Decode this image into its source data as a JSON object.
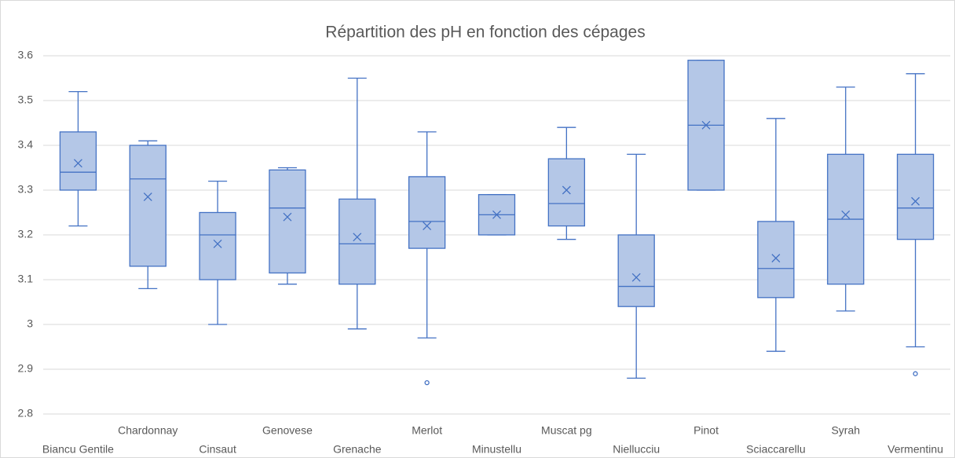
{
  "chart_data": {
    "type": "box",
    "title": "Répartition des pH en fonction des cépages",
    "categories": [
      "Biancu Gentile",
      "Chardonnay",
      "Cinsaut",
      "Genovese",
      "Grenache",
      "Merlot",
      "Minustellu",
      "Muscat pg",
      "Niellucciu",
      "Pinot",
      "Sciaccarellu",
      "Syrah",
      "Vermentinu"
    ],
    "boxes": [
      {
        "min": 3.22,
        "q1": 3.3,
        "median": 3.34,
        "q3": 3.43,
        "max": 3.52,
        "mean": 3.36,
        "outliers": []
      },
      {
        "min": 3.08,
        "q1": 3.13,
        "median": 3.325,
        "q3": 3.4,
        "max": 3.41,
        "mean": 3.285,
        "outliers": []
      },
      {
        "min": 3.0,
        "q1": 3.1,
        "median": 3.2,
        "q3": 3.25,
        "max": 3.32,
        "mean": 3.18,
        "outliers": []
      },
      {
        "min": 3.09,
        "q1": 3.115,
        "median": 3.26,
        "q3": 3.345,
        "max": 3.35,
        "mean": 3.24,
        "outliers": []
      },
      {
        "min": 2.99,
        "q1": 3.09,
        "median": 3.18,
        "q3": 3.28,
        "max": 3.55,
        "mean": 3.195,
        "outliers": []
      },
      {
        "min": 2.97,
        "q1": 3.17,
        "median": 3.23,
        "q3": 3.33,
        "max": 3.43,
        "mean": 3.22,
        "outliers": [
          2.87
        ]
      },
      {
        "min": 3.2,
        "q1": 3.2,
        "median": 3.245,
        "q3": 3.29,
        "max": 3.29,
        "mean": 3.245,
        "outliers": []
      },
      {
        "min": 3.19,
        "q1": 3.22,
        "median": 3.27,
        "q3": 3.37,
        "max": 3.44,
        "mean": 3.3,
        "outliers": []
      },
      {
        "min": 2.88,
        "q1": 3.04,
        "median": 3.085,
        "q3": 3.2,
        "max": 3.38,
        "mean": 3.105,
        "outliers": []
      },
      {
        "min": 3.3,
        "q1": 3.3,
        "median": 3.445,
        "q3": 3.59,
        "max": 3.59,
        "mean": 3.445,
        "outliers": []
      },
      {
        "min": 2.94,
        "q1": 3.06,
        "median": 3.125,
        "q3": 3.23,
        "max": 3.46,
        "mean": 3.148,
        "outliers": []
      },
      {
        "min": 3.03,
        "q1": 3.09,
        "median": 3.235,
        "q3": 3.38,
        "max": 3.53,
        "mean": 3.245,
        "outliers": []
      },
      {
        "min": 2.95,
        "q1": 3.19,
        "median": 3.26,
        "q3": 3.38,
        "max": 3.56,
        "mean": 3.275,
        "outliers": [
          2.89
        ]
      }
    ],
    "color": "#b4c7e7",
    "edge_color": "#4472c4",
    "ylim": [
      2.8,
      3.6
    ],
    "yticks": [
      2.8,
      2.9,
      3,
      3.1,
      3.2,
      3.3,
      3.4,
      3.5,
      3.6
    ],
    "grid": true
  }
}
